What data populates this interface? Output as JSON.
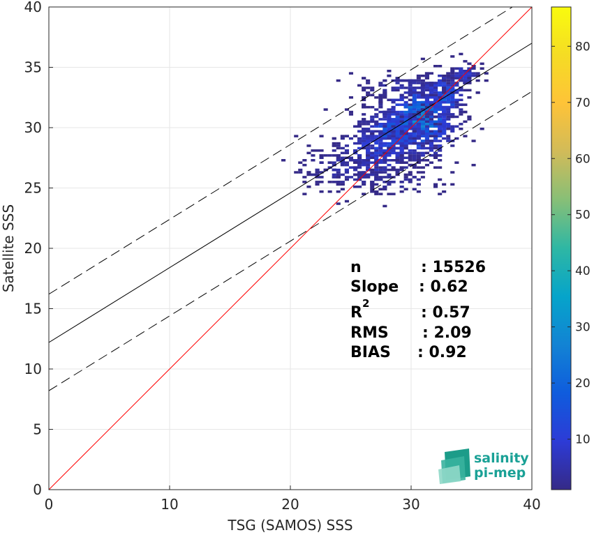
{
  "chart_data": {
    "type": "heatmap",
    "xlabel": "TSG (SAMOS) SSS",
    "ylabel": "Satellite SSS",
    "xlim": [
      0,
      40
    ],
    "ylim": [
      0,
      40
    ],
    "xticks": [
      "0",
      "10",
      "20",
      "30",
      "40"
    ],
    "yticks": [
      "0",
      "5",
      "10",
      "15",
      "20",
      "25",
      "30",
      "35",
      "40"
    ],
    "grid": true,
    "colorbar": {
      "range": [
        1,
        87
      ],
      "ticks": [
        "10",
        "20",
        "30",
        "40",
        "50",
        "60",
        "70",
        "80"
      ],
      "colormap": "parula"
    },
    "lines": {
      "identity": {
        "slope": 1,
        "intercept": 0,
        "color": "#ff0000"
      },
      "regression": {
        "slope": 0.62,
        "intercept": 12.2,
        "color": "#000000"
      },
      "upper_bound": {
        "slope": 0.62,
        "intercept": 16.2,
        "style": "dashed"
      },
      "lower_bound": {
        "slope": 0.62,
        "intercept": 8.2,
        "style": "dashed"
      }
    },
    "density_clusters": [
      {
        "x": 30.5,
        "y": 30.5,
        "sx": 1.6,
        "sy": 1.6,
        "n": 520,
        "max": 30
      },
      {
        "x": 28.5,
        "y": 29.5,
        "sx": 1.6,
        "sy": 1.3,
        "n": 300,
        "max": 18
      },
      {
        "x": 27.0,
        "y": 28.0,
        "sx": 2.0,
        "sy": 1.4,
        "n": 220,
        "max": 12
      },
      {
        "x": 32.5,
        "y": 32.5,
        "sx": 1.0,
        "sy": 1.0,
        "n": 160,
        "max": 20
      },
      {
        "x": 34.2,
        "y": 34.3,
        "sx": 0.6,
        "sy": 0.5,
        "n": 60,
        "max": 12
      },
      {
        "x": 24.5,
        "y": 26.5,
        "sx": 2.2,
        "sy": 1.0,
        "n": 140,
        "max": 6
      },
      {
        "x": 29.5,
        "y": 33.2,
        "sx": 2.2,
        "sy": 0.6,
        "n": 90,
        "max": 6
      },
      {
        "x": 28.0,
        "y": 25.5,
        "sx": 2.8,
        "sy": 0.8,
        "n": 70,
        "max": 4
      }
    ]
  },
  "stats": {
    "n_label": "n",
    "n_value": ": 15526",
    "slope_label": "Slope",
    "slope_value": ": 0.62",
    "r2_label": "R",
    "r2_sup": "2",
    "r2_value": ": 0.57",
    "rms_label": "RMS",
    "rms_value": ": 2.09",
    "bias_label": "BIAS",
    "bias_value": ": 0.92"
  },
  "logo": {
    "line1": "salinity",
    "line2": "pi-mep"
  }
}
